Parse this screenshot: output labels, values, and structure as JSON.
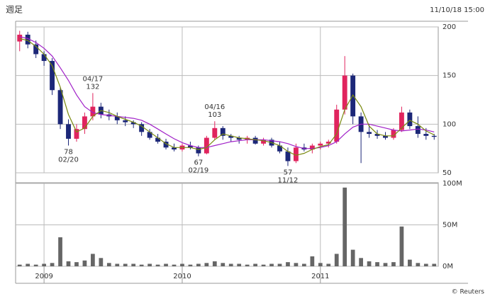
{
  "header": {
    "title": "週足",
    "timestamp": "11/10/18 15:00",
    "credit": "© Reuters"
  },
  "chart_data": {
    "type": "candlestick",
    "categories": [
      null,
      null,
      null,
      "2009",
      null,
      null,
      null,
      null,
      null,
      null,
      null,
      null,
      null,
      null,
      null,
      null,
      null,
      null,
      null,
      null,
      "2010",
      null,
      null,
      null,
      null,
      null,
      null,
      null,
      null,
      null,
      null,
      null,
      null,
      null,
      null,
      null,
      null,
      "2011",
      null,
      null,
      null,
      null,
      null,
      null,
      null,
      null,
      null,
      null,
      null,
      null,
      null,
      null
    ],
    "candles": {
      "open": [
        185,
        192,
        182,
        172,
        165,
        135,
        100,
        85,
        95,
        108,
        118,
        110,
        108,
        104,
        102,
        100,
        92,
        86,
        82,
        76,
        74,
        78,
        76,
        70,
        86,
        96,
        88,
        86,
        84,
        86,
        80,
        84,
        78,
        72,
        62,
        76,
        74,
        78,
        80,
        82,
        115,
        150,
        108,
        92,
        90,
        88,
        86,
        94,
        112,
        98,
        90,
        88
      ],
      "high": [
        196,
        195,
        186,
        175,
        168,
        138,
        105,
        100,
        112,
        132,
        122,
        115,
        112,
        108,
        104,
        102,
        95,
        90,
        85,
        80,
        80,
        82,
        78,
        88,
        103,
        98,
        90,
        88,
        88,
        88,
        86,
        86,
        82,
        76,
        80,
        80,
        80,
        82,
        84,
        120,
        170,
        152,
        112,
        100,
        94,
        92,
        96,
        118,
        115,
        108,
        96,
        90
      ],
      "low": [
        175,
        178,
        168,
        160,
        130,
        95,
        78,
        82,
        90,
        104,
        106,
        104,
        100,
        98,
        96,
        88,
        84,
        80,
        74,
        72,
        72,
        74,
        67,
        69,
        84,
        84,
        82,
        80,
        80,
        79,
        78,
        76,
        70,
        57,
        60,
        72,
        70,
        74,
        76,
        80,
        110,
        100,
        60,
        86,
        85,
        84,
        84,
        92,
        95,
        86,
        84,
        84
      ],
      "close": [
        192,
        182,
        172,
        165,
        135,
        100,
        85,
        95,
        108,
        118,
        110,
        108,
        104,
        102,
        100,
        92,
        86,
        82,
        76,
        74,
        78,
        76,
        70,
        86,
        96,
        88,
        86,
        84,
        86,
        80,
        84,
        78,
        72,
        62,
        76,
        74,
        78,
        80,
        82,
        115,
        150,
        108,
        92,
        90,
        88,
        86,
        94,
        112,
        98,
        90,
        88,
        87
      ],
      "up_color": "#e0245e",
      "down_color": "#1c2778"
    },
    "moving_averages": [
      {
        "color": "#a020c8",
        "values": [
          190,
          188,
          184,
          178,
          170,
          158,
          145,
          130,
          118,
          112,
          110,
          109,
          108,
          107,
          106,
          104,
          100,
          95,
          90,
          85,
          81,
          78,
          76,
          76,
          78,
          80,
          82,
          83,
          84,
          84,
          84,
          83,
          82,
          80,
          77,
          75,
          75,
          76,
          78,
          82,
          90,
          97,
          100,
          100,
          98,
          96,
          94,
          93,
          94,
          95,
          94,
          92
        ]
      },
      {
        "color": "#7a8a10",
        "values": [
          188,
          186,
          180,
          172,
          160,
          138,
          110,
          92,
          96,
          108,
          114,
          112,
          108,
          105,
          102,
          98,
          92,
          86,
          80,
          76,
          76,
          76,
          74,
          76,
          84,
          90,
          88,
          86,
          85,
          84,
          83,
          81,
          78,
          72,
          68,
          70,
          74,
          77,
          79,
          90,
          115,
          130,
          118,
          98,
          90,
          88,
          88,
          96,
          104,
          100,
          93,
          89
        ]
      }
    ],
    "annotations": [
      {
        "kind": "high",
        "date": "04/17",
        "value": 132
      },
      {
        "kind": "low",
        "date": "02/20",
        "value": 78
      },
      {
        "kind": "high",
        "date": "04/16",
        "value": 103
      },
      {
        "kind": "low",
        "date": "02/19",
        "value": 67
      },
      {
        "kind": "low",
        "date": "11/12",
        "value": 57
      }
    ],
    "ylim": [
      50,
      200
    ],
    "yticks": [
      50,
      100,
      150,
      200
    ],
    "volume": {
      "color": "#666666",
      "values": [
        2000000,
        3000000,
        2000000,
        3000000,
        4000000,
        35000000,
        6000000,
        5000000,
        7000000,
        15000000,
        10000000,
        4000000,
        3000000,
        3000000,
        3000000,
        2000000,
        3000000,
        2000000,
        3000000,
        2000000,
        3000000,
        2000000,
        3000000,
        4000000,
        6000000,
        4000000,
        3000000,
        3000000,
        2000000,
        3000000,
        2000000,
        3000000,
        3000000,
        5000000,
        4000000,
        3000000,
        12000000,
        4000000,
        3000000,
        15000000,
        95000000,
        20000000,
        10000000,
        6000000,
        5000000,
        4000000,
        5000000,
        48000000,
        8000000,
        4000000,
        3000000,
        3000000
      ]
    },
    "y2lim": [
      0,
      100000000
    ],
    "y2ticks": [
      {
        "value": 0,
        "label": "0M"
      },
      {
        "value": 50000000,
        "label": "50M"
      },
      {
        "value": 100000000,
        "label": "100M"
      }
    ],
    "grid": true
  }
}
